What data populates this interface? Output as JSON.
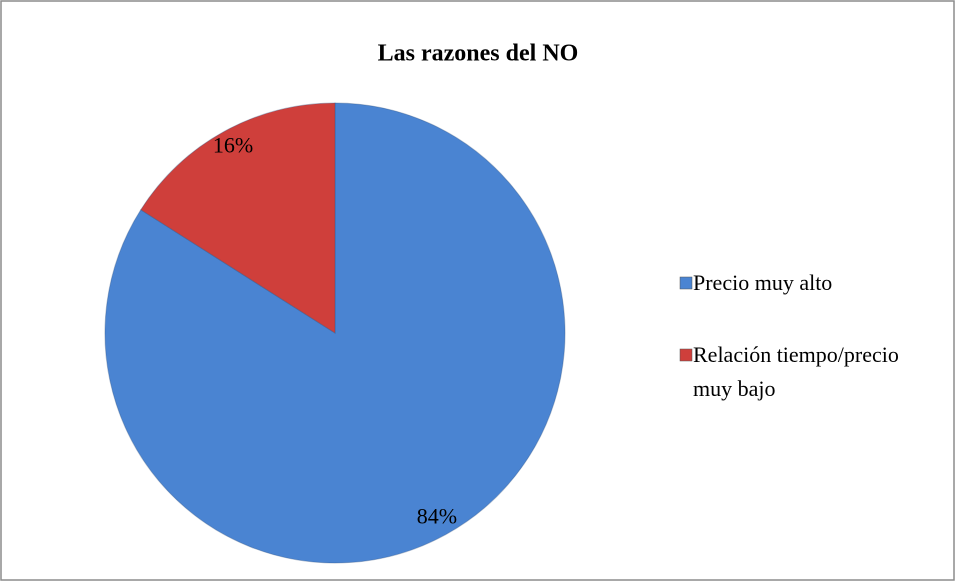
{
  "chart_data": {
    "type": "pie",
    "title": "Las razones del NO",
    "categories": [
      "Precio muy alto",
      "Relación tiempo/precio muy bajo"
    ],
    "values": [
      84,
      16
    ],
    "value_labels": [
      "84%",
      "16%"
    ],
    "colors": [
      "#4a84d2",
      "#cf3f3b"
    ],
    "legend": "right"
  }
}
